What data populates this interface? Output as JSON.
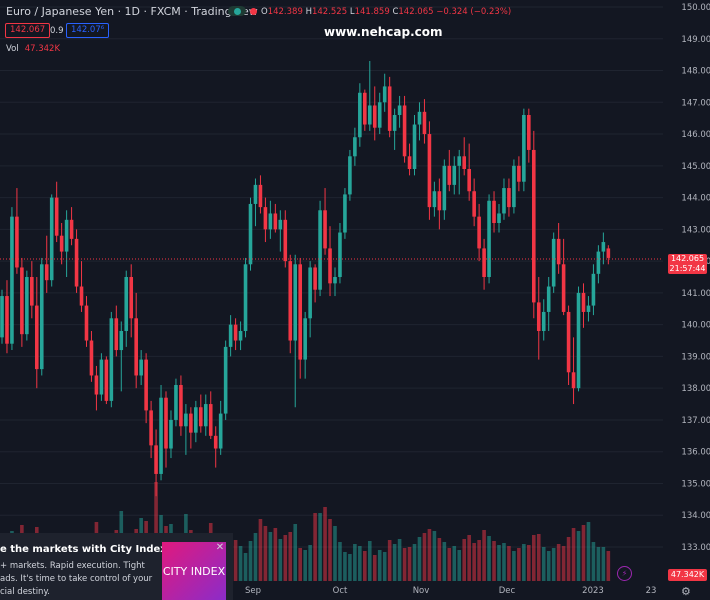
{
  "header": {
    "title": "Euro / Japanese Yen · 1D · FXCM · TradingView",
    "ohlc": {
      "o_label": "O",
      "o": "142.389",
      "h_label": "H",
      "h": "142.525",
      "l_label": "L",
      "l": "141.859",
      "c_label": "C",
      "c": "142.065",
      "change": "−0.324 (−0.23%)"
    },
    "sell_price": "142.067",
    "spread": "0.9",
    "buy_price": "142.07⁶",
    "vol_label": "Vol",
    "vol_value": "47.342K"
  },
  "watermark": "www.nehcap.com",
  "price_axis": {
    "ticks": [
      "150.000",
      "149.000",
      "148.000",
      "147.000",
      "146.000",
      "145.000",
      "144.000",
      "143.000",
      "142.000",
      "141.000",
      "140.000",
      "139.000",
      "138.000",
      "137.000",
      "136.000",
      "135.000",
      "134.000",
      "133.000"
    ],
    "last_price": "142.065",
    "countdown": "21:57:44",
    "last_volume": "47.342K"
  },
  "time_axis": [
    "Sep",
    "Oct",
    "Nov",
    "Dec",
    "2023",
    "23"
  ],
  "ad": {
    "title": "e the markets with City Index",
    "body": "+ markets. Rapid execution. Tight\nads. It's time to take control of your\ncial destiny.",
    "logo": "CITY INDEX"
  },
  "colors": {
    "up": "#26a69a",
    "down": "#f23645",
    "background": "#131722",
    "grid": "#1f2430",
    "text": "#b2b5be"
  },
  "chart_data": {
    "type": "candlestick",
    "price_range": [
      132.3,
      150.2
    ],
    "candles": [
      [
        139.6,
        141.1,
        139.4,
        140.9
      ],
      [
        140.9,
        141.4,
        139.1,
        139.4
      ],
      [
        139.4,
        143.7,
        139.2,
        143.4
      ],
      [
        143.4,
        144.3,
        141.6,
        141.8
      ],
      [
        141.8,
        142.1,
        139.3,
        139.7
      ],
      [
        139.7,
        141.7,
        139.5,
        141.5
      ],
      [
        141.5,
        142.0,
        140.2,
        140.6
      ],
      [
        140.6,
        141.5,
        138.0,
        138.6
      ],
      [
        138.6,
        142.1,
        138.4,
        141.9
      ],
      [
        141.9,
        142.8,
        141.0,
        141.4
      ],
      [
        141.4,
        144.1,
        141.2,
        144.0
      ],
      [
        144.0,
        144.5,
        142.6,
        142.8
      ],
      [
        142.8,
        143.2,
        141.9,
        142.3
      ],
      [
        142.3,
        143.6,
        141.5,
        143.3
      ],
      [
        143.3,
        143.7,
        142.5,
        142.7
      ],
      [
        142.7,
        143.0,
        141.0,
        141.2
      ],
      [
        141.2,
        142.0,
        140.4,
        140.6
      ],
      [
        140.6,
        140.9,
        139.3,
        139.5
      ],
      [
        139.5,
        139.8,
        138.2,
        138.4
      ],
      [
        138.4,
        138.7,
        137.3,
        137.8
      ],
      [
        137.8,
        139.1,
        137.6,
        138.9
      ],
      [
        138.9,
        139.0,
        137.5,
        137.6
      ],
      [
        137.6,
        140.4,
        137.4,
        140.2
      ],
      [
        140.2,
        140.6,
        139.0,
        139.2
      ],
      [
        139.2,
        140.1,
        137.9,
        139.8
      ],
      [
        139.8,
        141.7,
        139.3,
        141.5
      ],
      [
        141.5,
        141.9,
        139.6,
        140.2
      ],
      [
        140.2,
        141.0,
        138.0,
        138.4
      ],
      [
        138.4,
        139.2,
        138.1,
        138.9
      ],
      [
        138.9,
        139.1,
        136.9,
        137.3
      ],
      [
        137.3,
        137.6,
        135.8,
        136.2
      ],
      [
        136.2,
        136.7,
        134.6,
        135.3
      ],
      [
        135.3,
        138.1,
        135.1,
        137.7
      ],
      [
        137.7,
        137.9,
        135.5,
        136.1
      ],
      [
        136.1,
        137.3,
        135.8,
        137.0
      ],
      [
        137.0,
        138.3,
        136.8,
        138.1
      ],
      [
        138.1,
        138.4,
        136.5,
        136.8
      ],
      [
        136.8,
        137.5,
        135.9,
        137.2
      ],
      [
        137.2,
        137.4,
        136.1,
        136.6
      ],
      [
        136.6,
        137.6,
        136.3,
        137.4
      ],
      [
        137.4,
        137.8,
        136.6,
        136.8
      ],
      [
        136.8,
        137.8,
        136.5,
        137.5
      ],
      [
        137.5,
        137.9,
        136.4,
        136.5
      ],
      [
        136.5,
        136.8,
        135.5,
        136.1
      ],
      [
        136.1,
        137.6,
        135.9,
        137.2
      ],
      [
        137.2,
        139.5,
        137.0,
        139.3
      ],
      [
        139.3,
        140.3,
        139.0,
        140.0
      ],
      [
        140.0,
        140.2,
        139.2,
        139.5
      ],
      [
        139.5,
        140.1,
        139.2,
        139.8
      ],
      [
        139.8,
        142.1,
        139.6,
        141.9
      ],
      [
        141.9,
        144.0,
        141.7,
        143.8
      ],
      [
        143.8,
        144.6,
        143.1,
        144.4
      ],
      [
        144.4,
        144.7,
        143.5,
        143.7
      ],
      [
        143.7,
        144.0,
        142.6,
        143.0
      ],
      [
        143.0,
        143.9,
        142.7,
        143.5
      ],
      [
        143.5,
        143.8,
        142.9,
        143.0
      ],
      [
        143.0,
        143.6,
        142.3,
        143.3
      ],
      [
        143.3,
        143.6,
        141.8,
        142.0
      ],
      [
        142.0,
        142.2,
        139.1,
        139.5
      ],
      [
        139.5,
        142.2,
        137.4,
        141.9
      ],
      [
        141.9,
        142.1,
        138.3,
        138.9
      ],
      [
        138.9,
        140.4,
        138.3,
        140.2
      ],
      [
        140.2,
        142.0,
        139.6,
        141.8
      ],
      [
        141.8,
        141.9,
        140.7,
        141.1
      ],
      [
        141.1,
        143.9,
        140.9,
        143.6
      ],
      [
        143.6,
        144.3,
        142.2,
        142.4
      ],
      [
        142.4,
        143.1,
        140.9,
        141.3
      ],
      [
        141.3,
        141.8,
        140.9,
        141.5
      ],
      [
        141.5,
        143.2,
        141.3,
        142.9
      ],
      [
        142.9,
        144.3,
        142.7,
        144.1
      ],
      [
        144.1,
        145.5,
        143.9,
        145.3
      ],
      [
        145.3,
        146.2,
        145.0,
        145.9
      ],
      [
        145.9,
        147.6,
        145.6,
        147.3
      ],
      [
        147.3,
        147.4,
        146.1,
        146.3
      ],
      [
        146.3,
        148.3,
        146.1,
        146.9
      ],
      [
        146.9,
        147.5,
        145.8,
        146.2
      ],
      [
        146.2,
        147.3,
        146.0,
        147.0
      ],
      [
        147.0,
        147.9,
        146.7,
        147.5
      ],
      [
        147.5,
        147.8,
        145.9,
        146.1
      ],
      [
        146.1,
        146.8,
        145.5,
        146.6
      ],
      [
        146.6,
        147.2,
        146.2,
        146.9
      ],
      [
        146.9,
        147.2,
        145.1,
        145.3
      ],
      [
        145.3,
        145.7,
        144.7,
        144.9
      ],
      [
        144.9,
        146.6,
        144.7,
        146.3
      ],
      [
        146.3,
        147.0,
        145.8,
        146.7
      ],
      [
        146.7,
        147.1,
        145.7,
        146.0
      ],
      [
        146.0,
        146.4,
        143.3,
        143.7
      ],
      [
        143.7,
        144.5,
        143.4,
        144.2
      ],
      [
        144.2,
        144.6,
        143.0,
        143.6
      ],
      [
        143.6,
        145.2,
        143.3,
        145.0
      ],
      [
        145.0,
        145.5,
        144.2,
        144.4
      ],
      [
        144.4,
        145.3,
        144.1,
        145.0
      ],
      [
        145.0,
        145.5,
        144.1,
        145.3
      ],
      [
        145.3,
        145.9,
        144.7,
        144.9
      ],
      [
        144.9,
        145.7,
        143.9,
        144.2
      ],
      [
        144.2,
        144.6,
        143.1,
        143.4
      ],
      [
        143.4,
        143.8,
        142.0,
        142.4
      ],
      [
        142.4,
        142.7,
        141.1,
        141.5
      ],
      [
        141.5,
        144.1,
        141.3,
        143.9
      ],
      [
        143.9,
        144.2,
        142.9,
        143.2
      ],
      [
        143.2,
        143.8,
        142.9,
        143.5
      ],
      [
        143.5,
        144.6,
        143.3,
        144.3
      ],
      [
        144.3,
        144.6,
        143.4,
        143.7
      ],
      [
        143.7,
        145.2,
        143.5,
        145.0
      ],
      [
        145.0,
        145.3,
        144.2,
        144.5
      ],
      [
        144.5,
        146.8,
        144.2,
        146.6
      ],
      [
        146.6,
        146.8,
        145.1,
        145.5
      ],
      [
        145.5,
        146.1,
        140.2,
        140.7
      ],
      [
        140.7,
        141.5,
        138.9,
        139.8
      ],
      [
        139.8,
        140.8,
        139.5,
        140.4
      ],
      [
        140.4,
        141.5,
        139.8,
        141.2
      ],
      [
        141.2,
        142.9,
        141.0,
        142.7
      ],
      [
        142.7,
        143.2,
        141.6,
        141.9
      ],
      [
        141.9,
        142.7,
        140.3,
        140.4
      ],
      [
        140.4,
        140.6,
        138.1,
        138.5
      ],
      [
        138.5,
        139.6,
        137.5,
        138.0
      ],
      [
        138.0,
        141.2,
        137.9,
        141.0
      ],
      [
        141.0,
        141.3,
        139.9,
        140.4
      ],
      [
        140.4,
        140.9,
        140.1,
        140.6
      ],
      [
        140.6,
        141.9,
        140.3,
        141.6
      ],
      [
        141.6,
        142.5,
        141.3,
        142.3
      ],
      [
        142.3,
        142.9,
        141.9,
        142.6
      ],
      [
        142.4,
        142.5,
        141.9,
        142.1
      ]
    ],
    "volumes": [
      3.2,
      2.4,
      5.0,
      3.6,
      5.6,
      3.2,
      4.4,
      5.4,
      3.4,
      2.8,
      3.0,
      2.9,
      2.1,
      1.9,
      3.7,
      2.8,
      3.6,
      3.7,
      4.5,
      5.9,
      3.9,
      3.5,
      2.9,
      5.1,
      7.0,
      3.6,
      4.7,
      5.2,
      6.3,
      6.0,
      4.8,
      9.9,
      6.6,
      5.5,
      5.7,
      4.7,
      3.8,
      6.7,
      5.1,
      3.8,
      3.5,
      4.5,
      5.8,
      2.8,
      3.4,
      2.2,
      3.0,
      4.1,
      3.5,
      2.8,
      4.0,
      4.8,
      6.2,
      5.5,
      4.9,
      5.3,
      4.2,
      4.6,
      4.9,
      5.7,
      3.3,
      3.1,
      3.6,
      6.8,
      6.8,
      7.4,
      6.2,
      5.5,
      3.9,
      2.9,
      2.7,
      3.7,
      3.5,
      3.0,
      4.0,
      2.6,
      3.1,
      2.9,
      4.1,
      3.7,
      4.2,
      3.3,
      3.4,
      3.7,
      4.4,
      4.8,
      5.2,
      5.0,
      4.3,
      3.9,
      3.3,
      3.5,
      3.1,
      4.2,
      4.6,
      3.8,
      4.1,
      5.1,
      4.5,
      4.0,
      3.6,
      3.8,
      3.5,
      3.0,
      3.3,
      3.7,
      3.6,
      4.6,
      4.7,
      3.4,
      3.0,
      3.3,
      3.7,
      3.5,
      4.4,
      5.3,
      5.0,
      5.6,
      5.9,
      3.9,
      3.4,
      3.4,
      3.0,
      2.8
    ]
  }
}
